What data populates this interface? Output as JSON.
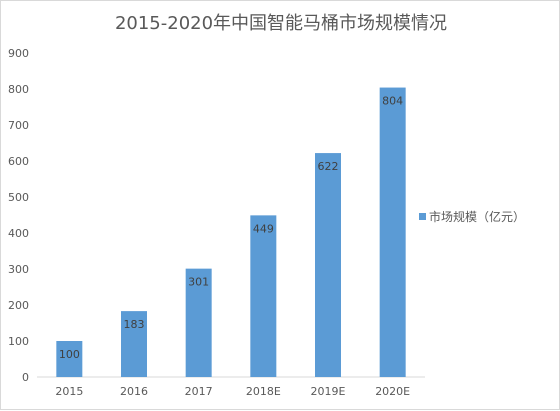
{
  "chart_data": {
    "type": "bar",
    "title": "2015-2020年中国智能马桶市场规模情况",
    "categories": [
      "2015",
      "2016",
      "2017",
      "2018E",
      "2019E",
      "2020E"
    ],
    "series": [
      {
        "name": "市场规模（亿元）",
        "values": [
          100,
          183,
          301,
          449,
          622,
          804
        ],
        "color": "#5b9bd5"
      }
    ],
    "ylim": [
      0,
      900
    ],
    "yticks": [
      0,
      100,
      200,
      300,
      400,
      500,
      600,
      700,
      800,
      900
    ],
    "xlabel": "",
    "ylabel": "",
    "grid": false,
    "legend_position": "right",
    "data_labels": true
  }
}
